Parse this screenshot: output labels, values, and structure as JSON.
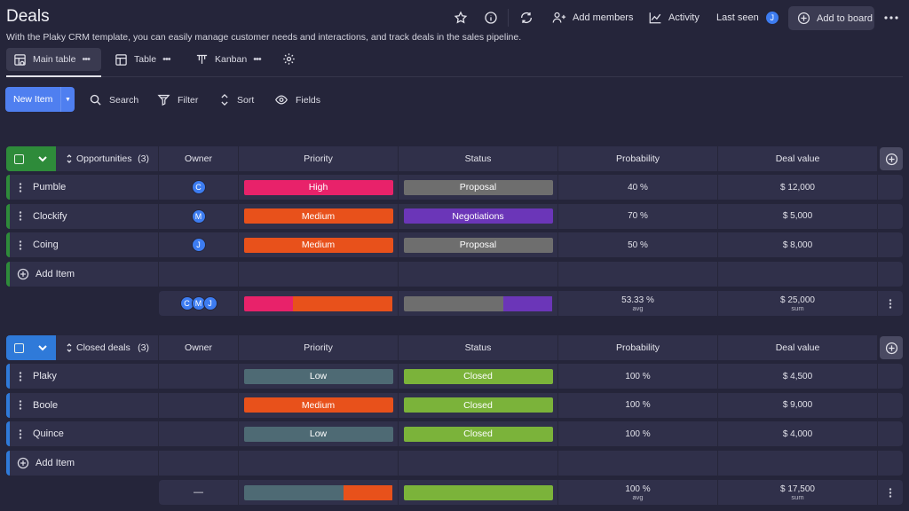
{
  "header": {
    "title": "Deals",
    "subtitle": "With the Plaky CRM template, you can easily manage customer needs and interactions, and track deals in the sales pipeline.",
    "add_members": "Add members",
    "activity": "Activity",
    "last_seen": "Last seen",
    "last_seen_avatar": "J",
    "add_to_board": "Add to board"
  },
  "views": {
    "main_table": "Main table",
    "table": "Table",
    "kanban": "Kanban"
  },
  "toolbar": {
    "new_item": "New Item",
    "search": "Search",
    "filter": "Filter",
    "sort": "Sort",
    "fields": "Fields"
  },
  "columns": {
    "owner": "Owner",
    "priority": "Priority",
    "status": "Status",
    "probability": "Probability",
    "deal_value": "Deal value"
  },
  "colors": {
    "high": "#e8226a",
    "medium": "#e8511b",
    "low": "#4e6a74",
    "proposal": "#6e6e6e",
    "negotiations": "#6b36b8",
    "closed": "#7bb33a",
    "group1": "#2e8b3a",
    "group2": "#2f7ad9"
  },
  "groups": [
    {
      "name": "Opportunities",
      "count": "(3)",
      "items": [
        {
          "name": "Pumble",
          "owner": "C",
          "priority": "High",
          "status": "Proposal",
          "probability": "40 %",
          "value": "$ 12,000"
        },
        {
          "name": "Clockify",
          "owner": "M",
          "priority": "Medium",
          "status": "Negotiations",
          "probability": "70 %",
          "value": "$ 5,000"
        },
        {
          "name": "Coing",
          "owner": "J",
          "priority": "Medium",
          "status": "Proposal",
          "probability": "50 %",
          "value": "$ 8,000"
        }
      ],
      "add_item": "Add Item",
      "summary": {
        "owners": [
          "C",
          "M",
          "J"
        ],
        "priority_split": {
          "high": 0.33,
          "medium": 0.67
        },
        "status_split": {
          "proposal": 0.67,
          "negotiations": 0.33
        },
        "probability": "53.33 %",
        "probability_label": "avg",
        "value": "$ 25,000",
        "value_label": "sum"
      }
    },
    {
      "name": "Closed deals",
      "count": "(3)",
      "items": [
        {
          "name": "Plaky",
          "owner": "",
          "priority": "Low",
          "status": "Closed",
          "probability": "100 %",
          "value": "$ 4,500"
        },
        {
          "name": "Boole",
          "owner": "",
          "priority": "Medium",
          "status": "Closed",
          "probability": "100 %",
          "value": "$ 9,000"
        },
        {
          "name": "Quince",
          "owner": "",
          "priority": "Low",
          "status": "Closed",
          "probability": "100 %",
          "value": "$ 4,000"
        }
      ],
      "add_item": "Add Item",
      "summary": {
        "owners_empty": "—",
        "priority_split": {
          "low": 0.67,
          "medium": 0.33
        },
        "status_split": {
          "closed": 1.0
        },
        "probability": "100 %",
        "probability_label": "avg",
        "value": "$ 17,500",
        "value_label": "sum"
      }
    }
  ]
}
